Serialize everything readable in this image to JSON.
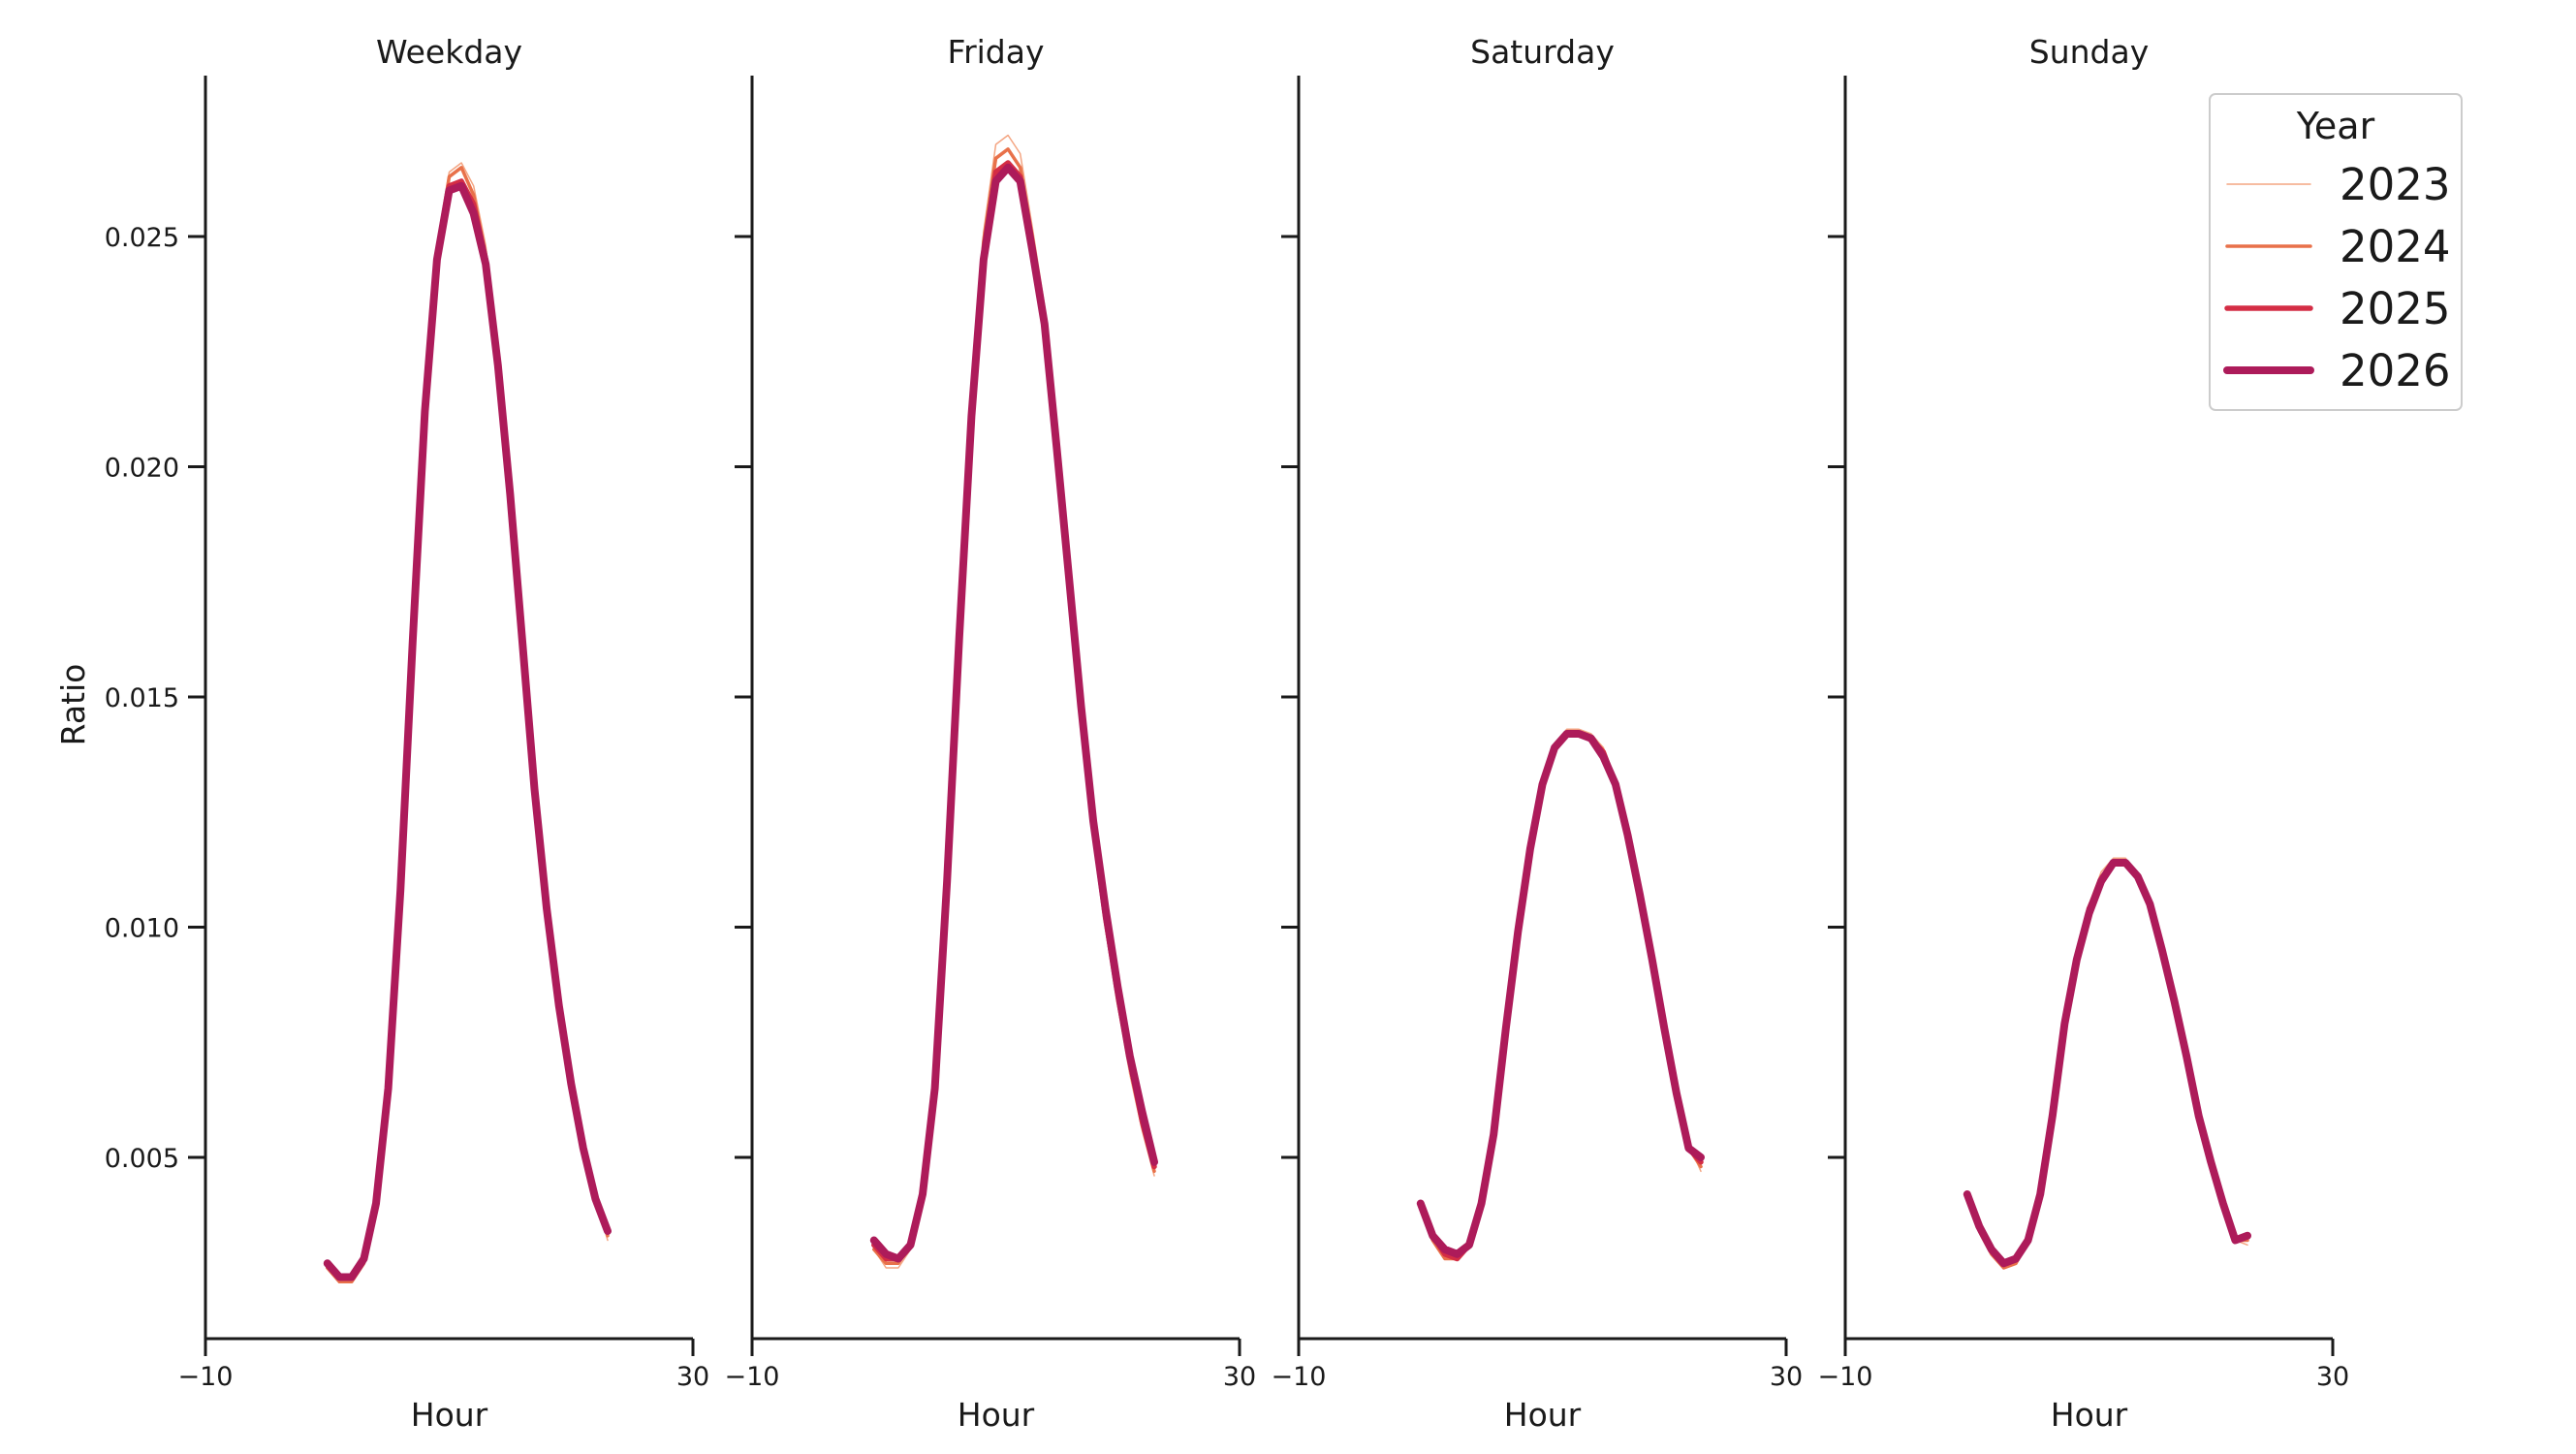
{
  "chart_data": {
    "type": "line",
    "ylabel": "Ratio",
    "xlabel": "Hour",
    "xlim": [
      -10,
      30
    ],
    "ylim": [
      0.001,
      0.0285
    ],
    "x_ticks": [
      -10,
      30
    ],
    "x_tick_labels": [
      "−10",
      "30"
    ],
    "y_ticks": [
      0.005,
      0.01,
      0.015,
      0.02,
      0.025
    ],
    "y_tick_labels": [
      "0.005",
      "0.010",
      "0.015",
      "0.020",
      "0.025"
    ],
    "x": [
      0,
      1,
      2,
      3,
      4,
      5,
      6,
      7,
      8,
      9,
      10,
      11,
      12,
      13,
      14,
      15,
      16,
      17,
      18,
      19,
      20,
      21,
      22,
      23
    ],
    "legend": {
      "title": "Year",
      "placement": "top-right",
      "entries": [
        {
          "label": "2023",
          "color": "#f4a582",
          "width": 1.5
        },
        {
          "label": "2024",
          "color": "#e8714a",
          "width": 3.5
        },
        {
          "label": "2025",
          "color": "#d42d45",
          "width": 5.5
        },
        {
          "label": "2026",
          "color": "#ad1b5a",
          "width": 8
        }
      ]
    },
    "panels": [
      {
        "title": "Weekday",
        "series": [
          {
            "name": "2023",
            "values": [
              0.0026,
              0.0023,
              0.0023,
              0.0027,
              0.0039,
              0.0065,
              0.0108,
              0.0162,
              0.0212,
              0.0248,
              0.0264,
              0.0266,
              0.0261,
              0.0248,
              0.0226,
              0.0198,
              0.0164,
              0.0131,
              0.0105,
              0.0083,
              0.0066,
              0.0052,
              0.0041,
              0.0032
            ]
          },
          {
            "name": "2024",
            "values": [
              0.0026,
              0.0023,
              0.0023,
              0.0027,
              0.0039,
              0.0065,
              0.0108,
              0.0162,
              0.0212,
              0.0247,
              0.0263,
              0.0265,
              0.0259,
              0.0246,
              0.0224,
              0.0196,
              0.0163,
              0.0131,
              0.0105,
              0.0083,
              0.0066,
              0.0052,
              0.0041,
              0.0033
            ]
          },
          {
            "name": "2025",
            "values": [
              0.0027,
              0.0024,
              0.0024,
              0.0028,
              0.004,
              0.0065,
              0.0108,
              0.0162,
              0.0212,
              0.0246,
              0.0261,
              0.0262,
              0.0257,
              0.0245,
              0.0223,
              0.0195,
              0.0162,
              0.013,
              0.0104,
              0.0083,
              0.0066,
              0.0052,
              0.0041,
              0.0034
            ]
          },
          {
            "name": "2026",
            "values": [
              0.0027,
              0.0024,
              0.0024,
              0.0028,
              0.004,
              0.0065,
              0.0108,
              0.0162,
              0.0212,
              0.0245,
              0.026,
              0.0261,
              0.0255,
              0.0244,
              0.0222,
              0.0194,
              0.0162,
              0.013,
              0.0104,
              0.0083,
              0.0066,
              0.0052,
              0.0041,
              0.0034
            ]
          }
        ]
      },
      {
        "title": "Friday",
        "series": [
          {
            "name": "2023",
            "values": [
              0.003,
              0.0026,
              0.0026,
              0.003,
              0.0041,
              0.0065,
              0.011,
              0.0164,
              0.0214,
              0.0251,
              0.027,
              0.0272,
              0.0268,
              0.0252,
              0.0235,
              0.0207,
              0.0178,
              0.0147,
              0.012,
              0.01,
              0.0083,
              0.0068,
              0.0056,
              0.0046
            ]
          },
          {
            "name": "2024",
            "values": [
              0.003,
              0.0027,
              0.0027,
              0.0031,
              0.0041,
              0.0065,
              0.011,
              0.0164,
              0.0213,
              0.0249,
              0.0267,
              0.0269,
              0.0265,
              0.025,
              0.0233,
              0.0205,
              0.0176,
              0.0147,
              0.0121,
              0.0101,
              0.0084,
              0.007,
              0.0057,
              0.0047
            ]
          },
          {
            "name": "2025",
            "values": [
              0.0031,
              0.0028,
              0.0028,
              0.0031,
              0.0042,
              0.0065,
              0.011,
              0.0163,
              0.0212,
              0.0246,
              0.0264,
              0.0266,
              0.0263,
              0.0248,
              0.0232,
              0.0204,
              0.0176,
              0.0148,
              0.0122,
              0.0102,
              0.0086,
              0.0071,
              0.0058,
              0.0048
            ]
          },
          {
            "name": "2026",
            "values": [
              0.0032,
              0.0029,
              0.0028,
              0.0031,
              0.0042,
              0.0065,
              0.011,
              0.0163,
              0.0211,
              0.0245,
              0.0262,
              0.0265,
              0.0262,
              0.0247,
              0.0231,
              0.0204,
              0.0176,
              0.0148,
              0.0123,
              0.0104,
              0.0087,
              0.0072,
              0.006,
              0.0049
            ]
          }
        ]
      },
      {
        "title": "Saturday",
        "series": [
          {
            "name": "2023",
            "values": [
              0.0039,
              0.0032,
              0.0028,
              0.0028,
              0.0031,
              0.004,
              0.0055,
              0.0078,
              0.01,
              0.0118,
              0.0132,
              0.014,
              0.0143,
              0.0143,
              0.0142,
              0.0139,
              0.0132,
              0.0121,
              0.0108,
              0.0093,
              0.0078,
              0.0065,
              0.0053,
              0.0047
            ]
          },
          {
            "name": "2024",
            "values": [
              0.0039,
              0.0032,
              0.0028,
              0.0028,
              0.0031,
              0.004,
              0.0055,
              0.0078,
              0.01,
              0.0118,
              0.0131,
              0.0139,
              0.0142,
              0.0142,
              0.0141,
              0.0138,
              0.0131,
              0.012,
              0.0107,
              0.0092,
              0.0078,
              0.0064,
              0.0052,
              0.0048
            ]
          },
          {
            "name": "2025",
            "values": [
              0.004,
              0.0033,
              0.0029,
              0.0028,
              0.0031,
              0.004,
              0.0055,
              0.0078,
              0.0099,
              0.0117,
              0.0131,
              0.0139,
              0.0142,
              0.0142,
              0.0141,
              0.0138,
              0.0131,
              0.012,
              0.0107,
              0.0093,
              0.0078,
              0.0065,
              0.0052,
              0.0049
            ]
          },
          {
            "name": "2026",
            "values": [
              0.004,
              0.0033,
              0.003,
              0.0029,
              0.0031,
              0.004,
              0.0055,
              0.0078,
              0.0099,
              0.0117,
              0.0131,
              0.0139,
              0.0142,
              0.0142,
              0.0141,
              0.0137,
              0.0131,
              0.012,
              0.0107,
              0.0093,
              0.0078,
              0.0064,
              0.0052,
              0.005
            ]
          }
        ]
      },
      {
        "title": "Sunday",
        "series": [
          {
            "name": "2023",
            "values": [
              0.0041,
              0.0034,
              0.0029,
              0.0026,
              0.0027,
              0.0032,
              0.0042,
              0.0059,
              0.0079,
              0.0094,
              0.0105,
              0.0112,
              0.0115,
              0.0115,
              0.0111,
              0.0105,
              0.0096,
              0.0084,
              0.0072,
              0.0059,
              0.005,
              0.004,
              0.0032,
              0.0031
            ]
          },
          {
            "name": "2024",
            "values": [
              0.0041,
              0.0034,
              0.0029,
              0.0026,
              0.0027,
              0.0032,
              0.0042,
              0.0059,
              0.0079,
              0.0094,
              0.0104,
              0.0111,
              0.0114,
              0.0114,
              0.0111,
              0.0105,
              0.0095,
              0.0084,
              0.0072,
              0.0059,
              0.0049,
              0.004,
              0.0032,
              0.0032
            ]
          },
          {
            "name": "2025",
            "values": [
              0.0042,
              0.0035,
              0.003,
              0.0027,
              0.0028,
              0.0032,
              0.0042,
              0.0059,
              0.0079,
              0.0093,
              0.0104,
              0.011,
              0.0114,
              0.0114,
              0.0111,
              0.0105,
              0.0095,
              0.0084,
              0.0072,
              0.0059,
              0.0049,
              0.004,
              0.0032,
              0.0033
            ]
          },
          {
            "name": "2026",
            "values": [
              0.0042,
              0.0035,
              0.003,
              0.0027,
              0.0028,
              0.0032,
              0.0042,
              0.0059,
              0.0079,
              0.0093,
              0.0103,
              0.011,
              0.0114,
              0.0114,
              0.0111,
              0.0105,
              0.0095,
              0.0084,
              0.0072,
              0.0059,
              0.0049,
              0.004,
              0.0032,
              0.0033
            ]
          }
        ]
      }
    ]
  }
}
